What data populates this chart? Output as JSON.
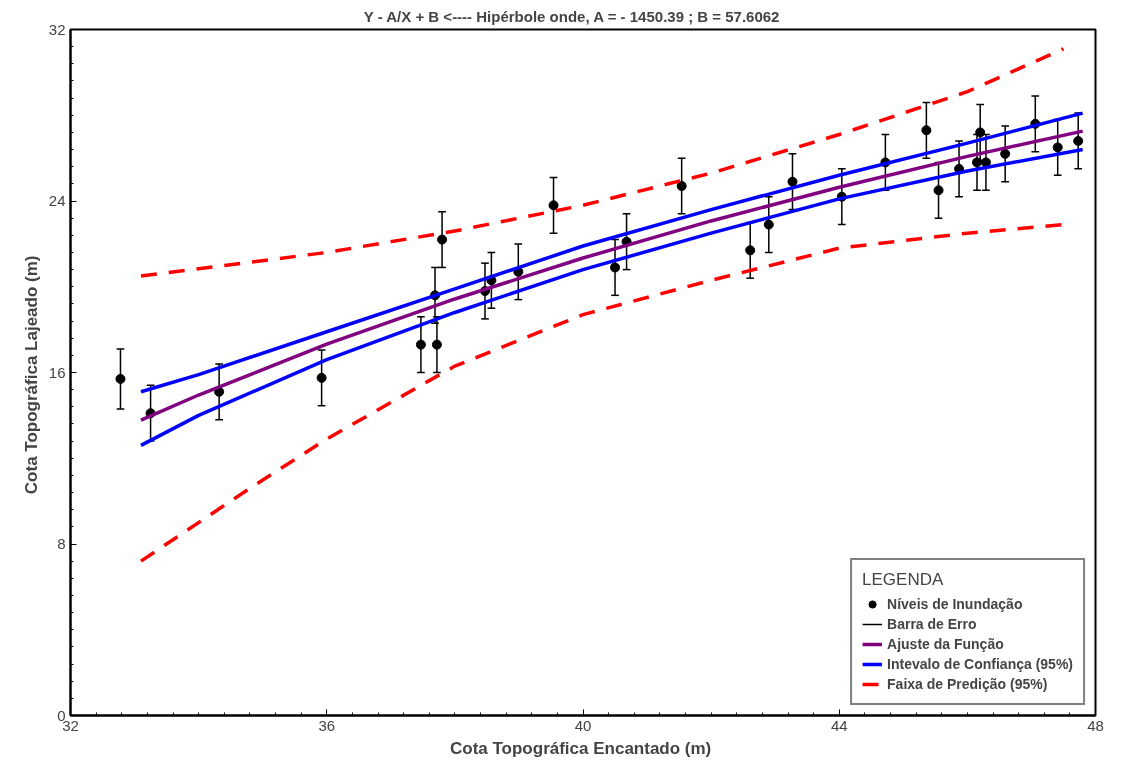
{
  "chart_data": {
    "type": "scatter",
    "title": "Y - A/X + B  <---- Hipérbole  onde,  A = - 1450.39  ;  B = 57.6062",
    "xlabel": "Cota Topográfica  Encantado (m)",
    "ylabel": "Cota Topográfica  Lajeado (m)",
    "legend_title": "LEGENDA",
    "legend": "bottom right",
    "grid": false,
    "xlim": [
      32,
      48
    ],
    "ylim": [
      0,
      32
    ],
    "xticks": [
      32,
      36,
      40,
      44,
      48
    ],
    "yticks": [
      0,
      8,
      16,
      24,
      32
    ],
    "annotations": [
      "Barra de Erro"
    ],
    "series": [
      {
        "name": "Níveis de Inundação",
        "marker": "circle",
        "color": "#000000",
        "x": [
          32.78,
          33.25,
          34.32,
          35.92,
          37.47,
          37.72,
          37.69,
          37.8,
          38.47,
          38.57,
          38.99,
          39.54,
          40.5,
          40.68,
          41.54,
          42.61,
          42.9,
          43.27,
          44.04,
          44.72,
          45.36,
          45.55,
          45.87,
          46.15,
          46.2,
          46.29,
          46.59,
          47.06,
          47.41,
          47.73
        ],
        "values": [
          15.7,
          14.1,
          15.1,
          15.75,
          17.3,
          17.3,
          19.6,
          22.2,
          19.8,
          20.3,
          20.7,
          23.8,
          20.9,
          22.1,
          24.7,
          21.7,
          22.9,
          24.9,
          24.2,
          25.8,
          27.3,
          24.5,
          25.5,
          25.8,
          27.2,
          25.8,
          26.2,
          27.6,
          26.5,
          26.8
        ],
        "errors": [
          1.4,
          1.3,
          1.3,
          1.3,
          1.3,
          1.3,
          1.3,
          1.3,
          1.3,
          1.3,
          1.3,
          1.3,
          1.3,
          1.3,
          1.3,
          1.3,
          1.3,
          1.3,
          1.3,
          1.3,
          1.3,
          1.3,
          1.3,
          1.3,
          1.3,
          1.3,
          1.3,
          1.3,
          1.3,
          1.3
        ]
      },
      {
        "name": "Ajuste da Função",
        "type": "line",
        "line_style": "solid",
        "color": "#800080",
        "x": [
          33.1,
          34,
          36,
          38,
          40,
          42,
          44,
          46,
          47.8
        ],
        "values": [
          13.78,
          14.95,
          17.32,
          19.43,
          21.34,
          23.07,
          24.64,
          26.08,
          27.26
        ]
      },
      {
        "name": "Intevalo de Confiança (95%)",
        "type": "line",
        "line_style": "solid",
        "color": "#0000ff",
        "x": [
          33.1,
          34,
          36,
          38,
          40,
          42,
          44,
          46,
          47.8
        ],
        "values": [
          15.1,
          15.9,
          17.9,
          19.9,
          21.9,
          23.6,
          25.2,
          26.7,
          28.1
        ]
      },
      {
        "type": "line",
        "line_style": "solid",
        "color": "#0000ff",
        "x": [
          33.1,
          34,
          36,
          38,
          40,
          42,
          44,
          46,
          47.8
        ],
        "values": [
          12.6,
          14.0,
          16.6,
          18.8,
          20.8,
          22.5,
          24.1,
          25.4,
          26.4
        ]
      },
      {
        "name": "Faixa de Predição (95%)",
        "type": "line",
        "line_style": "dashed",
        "color": "#ff0000",
        "x": [
          33.1,
          36,
          38,
          40,
          42,
          44,
          46,
          47.5
        ],
        "values": [
          20.5,
          21.6,
          22.6,
          23.8,
          25.3,
          27.1,
          29.1,
          31.1
        ]
      },
      {
        "type": "line",
        "line_style": "dashed",
        "color": "#ff0000",
        "x": [
          33.1,
          34.8,
          36,
          38,
          40,
          42,
          44,
          46,
          47.5
        ],
        "values": [
          7.2,
          10.6,
          12.9,
          16.3,
          18.7,
          20.3,
          21.8,
          22.5,
          22.9
        ]
      }
    ]
  }
}
